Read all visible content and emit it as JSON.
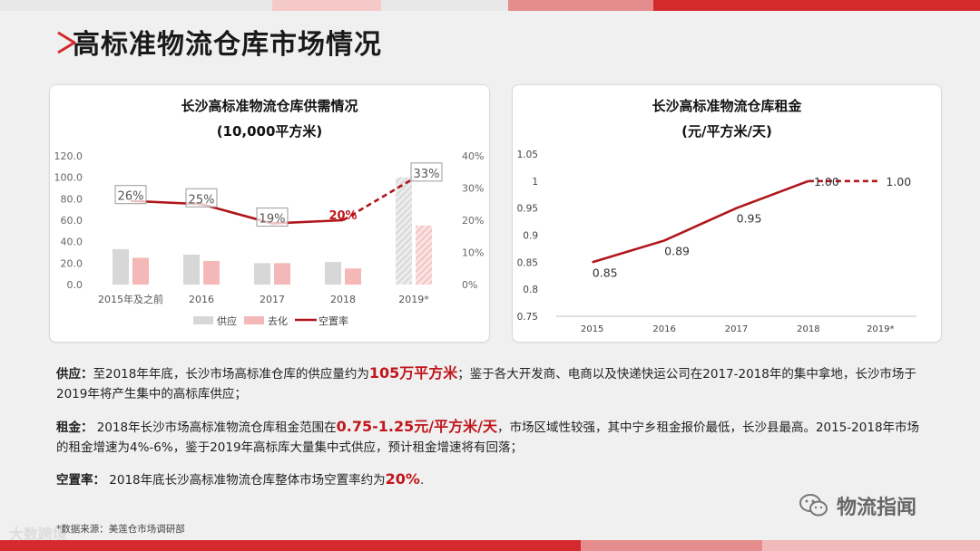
{
  "page": {
    "title": "高标准物流仓库市场情况",
    "colors": {
      "accent": "#c0171c",
      "bar_light": "#f4b8b8",
      "bar_gray": "#d7d7d7"
    }
  },
  "supply_chart": {
    "title": "长沙高标准物流仓库供需情况",
    "subtitle": "(10,000平方米)",
    "legend": {
      "supply": "供应",
      "absorption": "去化",
      "vacancy": "空置率"
    }
  },
  "rent_chart": {
    "title": "长沙高标准物流仓库租金",
    "subtitle": "(元/平方米/天)"
  },
  "chart_data": [
    {
      "type": "bar",
      "title": "长沙高标准物流仓库供需情况",
      "subtitle": "(10,000平方米)",
      "categories": [
        "2015年及之前",
        "2016",
        "2017",
        "2018",
        "2019*"
      ],
      "y_ticks": [
        "0.0",
        "20.0",
        "40.0",
        "60.0",
        "80.0",
        "100.0",
        "120.0"
      ],
      "y2_ticks": [
        "0%",
        "10%",
        "20%",
        "30%",
        "40%"
      ],
      "ylim": [
        0,
        120
      ],
      "y2lim": [
        0,
        40
      ],
      "series": [
        {
          "name": "供应",
          "kind": "bar",
          "values": [
            33,
            28,
            20,
            21,
            100
          ]
        },
        {
          "name": "去化",
          "kind": "bar",
          "values": [
            25,
            22,
            20,
            15,
            55
          ]
        },
        {
          "name": "空置率",
          "kind": "line",
          "axis": "right",
          "values": [
            26,
            25,
            19,
            20,
            33
          ],
          "labels": [
            "26%",
            "25%",
            "19%",
            "20%",
            "33%"
          ],
          "projected_from_index": 3
        }
      ],
      "legend_position": "bottom"
    },
    {
      "type": "line",
      "title": "长沙高标准物流仓库租金",
      "subtitle": "(元/平方米/天)",
      "categories": [
        "2015",
        "2016",
        "2017",
        "2018",
        "2019*"
      ],
      "y_ticks": [
        "0.75",
        "0.8",
        "0.85",
        "0.9",
        "0.95",
        "1",
        "1.05"
      ],
      "ylim": [
        0.75,
        1.05
      ],
      "series": [
        {
          "name": "租金",
          "values": [
            0.85,
            0.89,
            0.95,
            1.0,
            1.0
          ],
          "labels": [
            "0.85",
            "0.89",
            "0.95",
            "1.00",
            "1.00"
          ],
          "projected_from_index": 3
        }
      ]
    }
  ],
  "description": {
    "supply": {
      "label": "供应：",
      "text1": "至2018年年底，长沙市场高标准仓库的供应量约为",
      "highlight": "105万平方米",
      "text2": "；鉴于各大开发商、电商以及快递快运公司在2017-2018年的集中拿地，长沙市场于2019年将产生集中的高标库供应；"
    },
    "rent": {
      "label": "租金：",
      "text1": " 2018年长沙市场高标准物流仓库租金范围在",
      "highlight": "0.75-1.25元/平方米/天",
      "text2": "，市场区域性较强，其中宁乡租金报价最低，长沙县最高。2015-2018年市场的租金增速为4%-6%，鉴于2019年高标库大量集中式供应，预计租金增速将有回落；"
    },
    "vacancy": {
      "label": "空置率：",
      "text1": " 2018年底长沙高标准物流仓库整体市场空置率约为",
      "highlight": "20%",
      "text2": "."
    }
  },
  "footer": {
    "source": "*数据来源：美莲仓市场调研部",
    "watermark_left": "大数跨境",
    "watermark_right": "物流指闻"
  }
}
